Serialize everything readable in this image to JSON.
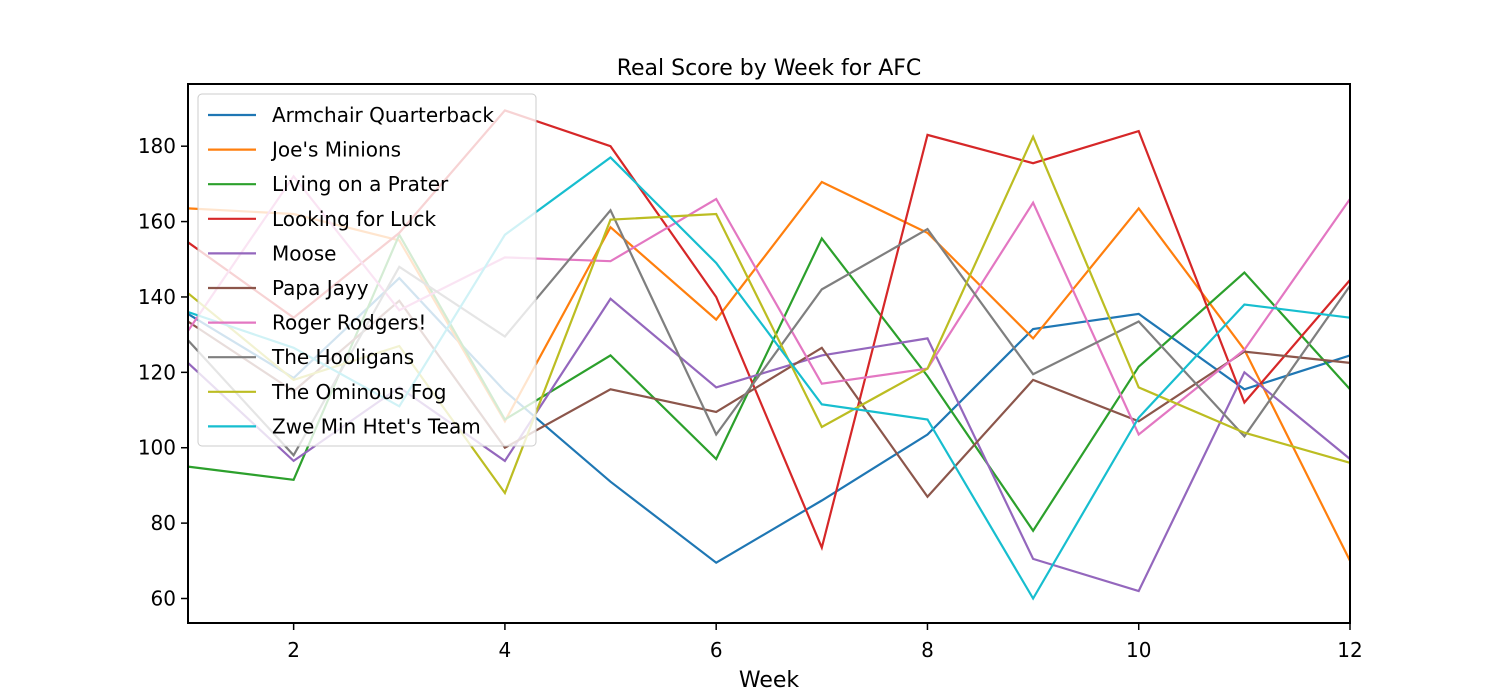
{
  "chart_data": {
    "type": "line",
    "title": "Real Score by Week for AFC",
    "xlabel": "Week",
    "ylabel": "",
    "x": [
      1,
      2,
      3,
      4,
      5,
      6,
      7,
      8,
      9,
      10,
      11,
      12
    ],
    "xlim": [
      1,
      12
    ],
    "ylim": [
      53.5,
      196.5
    ],
    "xticks": [
      2,
      4,
      6,
      8,
      10,
      12
    ],
    "yticks": [
      60,
      80,
      100,
      120,
      140,
      160,
      180
    ],
    "grid": false,
    "legend_position": "upper-left",
    "series": [
      {
        "name": "Armchair Quarterback",
        "color": "#1f77b4",
        "values": [
          135.5,
          118.5,
          145,
          115,
          91,
          69.5,
          86,
          103.5,
          131.5,
          135.5,
          115.5,
          124.5
        ]
      },
      {
        "name": "Joe's Minions",
        "color": "#ff7f0e",
        "values": [
          163.5,
          162,
          155,
          107,
          158.5,
          134,
          170.5,
          157,
          129,
          163.5,
          126,
          70
        ]
      },
      {
        "name": "Living on a Prater",
        "color": "#2ca02c",
        "values": [
          95,
          91.5,
          156.5,
          107.5,
          124.5,
          97,
          155.5,
          119,
          78,
          121.5,
          146.5,
          115.5
        ]
      },
      {
        "name": "Looking for Luck",
        "color": "#d62728",
        "values": [
          154.5,
          134.5,
          157,
          189.5,
          180,
          140,
          73.5,
          183,
          175.5,
          184,
          112,
          144.5
        ]
      },
      {
        "name": "Moose",
        "color": "#9467bd",
        "values": [
          122.5,
          96.5,
          116,
          96.5,
          139.5,
          116,
          124.5,
          129,
          70.5,
          62,
          120,
          97
        ]
      },
      {
        "name": "Papa Jayy",
        "color": "#8c564b",
        "values": [
          133.5,
          115,
          139,
          100,
          115.5,
          109.5,
          126.5,
          87,
          118,
          107,
          125.5,
          122.5
        ]
      },
      {
        "name": "Roger Rodgers!",
        "color": "#e377c2",
        "values": [
          131,
          172,
          136.5,
          150.5,
          149.5,
          166,
          117,
          121,
          165,
          103.5,
          126,
          166
        ]
      },
      {
        "name": "The Hooligans",
        "color": "#7f7f7f",
        "values": [
          128.5,
          98,
          148,
          129.5,
          163,
          103.5,
          142,
          158,
          119.5,
          133.5,
          103,
          143
        ]
      },
      {
        "name": "The Ominous Fog",
        "color": "#bcbd22",
        "values": [
          141,
          118,
          127,
          88,
          160.5,
          162,
          105.5,
          121,
          182.5,
          116,
          104,
          96
        ]
      },
      {
        "name": "Zwe Min Htet's Team",
        "color": "#17becf",
        "values": [
          136,
          126.5,
          111,
          156.5,
          177,
          149,
          111.5,
          107.5,
          60,
          108,
          138,
          134.5
        ]
      }
    ]
  }
}
